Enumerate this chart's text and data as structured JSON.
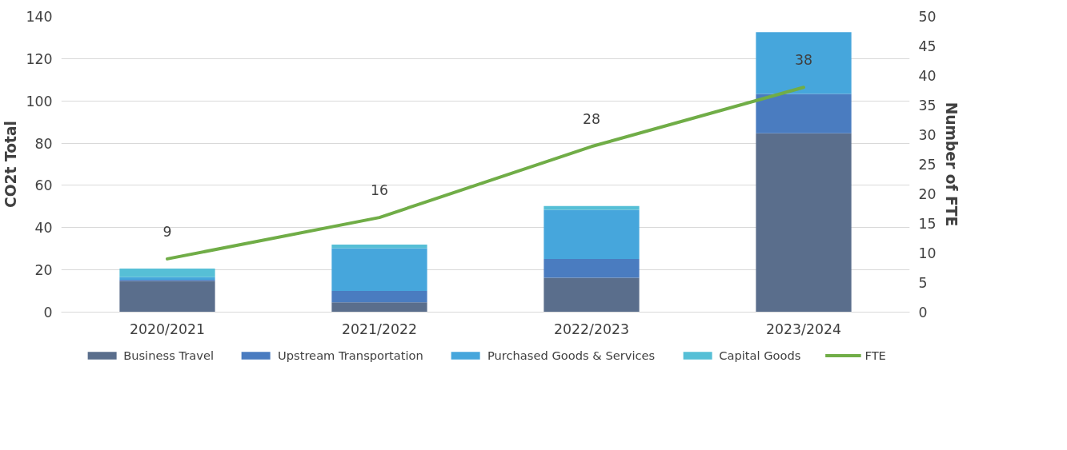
{
  "chart_data": {
    "type": "bar",
    "stacked": true,
    "categories": [
      "2020/2021",
      "2021/2022",
      "2022/2023",
      "2023/2024"
    ],
    "ylabel": "CO2t Total",
    "y2label": "Number of FTE",
    "ylim": [
      0,
      140
    ],
    "yticks": [
      0,
      20,
      40,
      60,
      80,
      100,
      120,
      140
    ],
    "y2lim": [
      0,
      50
    ],
    "y2ticks": [
      0,
      5,
      10,
      15,
      20,
      25,
      30,
      35,
      40,
      45,
      50
    ],
    "grid": "y",
    "legend": "bottom",
    "series": [
      {
        "name": "Business Travel",
        "color": "#5a6e8c",
        "values": [
          14.8,
          4.6,
          16.3,
          84.7
        ]
      },
      {
        "name": "Upstream Transportation",
        "color": "#4a7cc0",
        "values": [
          0.5,
          5.4,
          8.9,
          18.6
        ]
      },
      {
        "name": "Purchased Goods & Services",
        "color": "#46a6dc",
        "values": [
          1.3,
          20.3,
          23.2,
          29.2
        ]
      },
      {
        "name": "Capital Goods",
        "color": "#56bfd6",
        "values": [
          4.0,
          1.7,
          1.8,
          0
        ]
      },
      {
        "name": "FTE",
        "type": "line",
        "axis": "y2",
        "color": "#70ad47",
        "values": [
          9,
          16,
          28,
          38
        ],
        "data_labels": true
      }
    ]
  }
}
